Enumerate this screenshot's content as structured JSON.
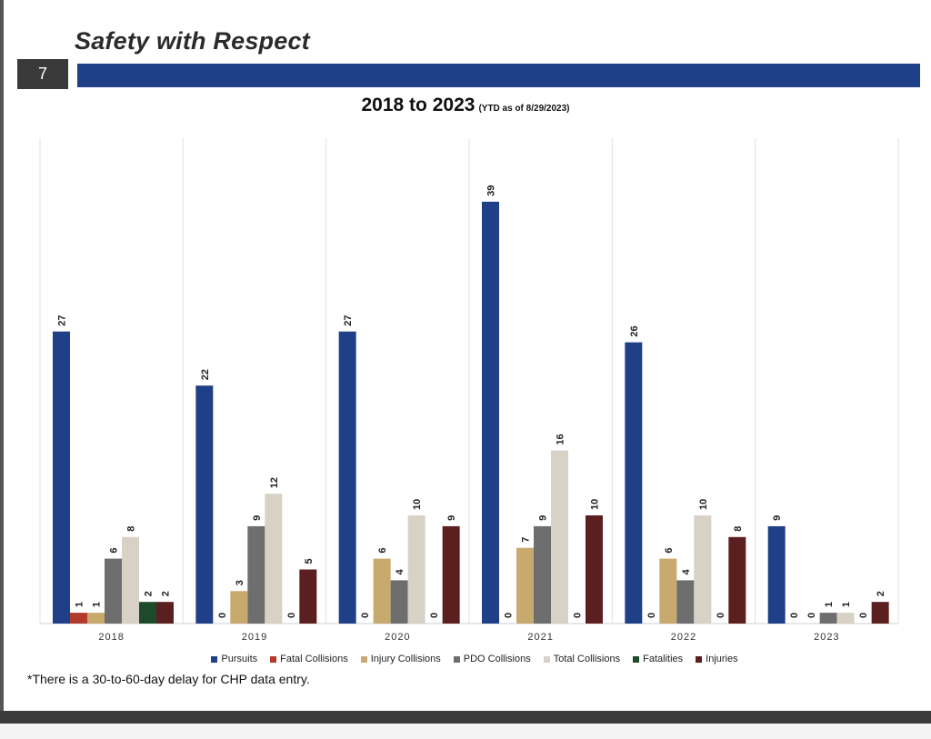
{
  "header": {
    "title": "Safety with Respect",
    "page_number": "7"
  },
  "footnote": "*There is a 30-to-60-day delay for CHP data entry.",
  "chart_data": {
    "type": "bar",
    "title": "2018 to 2023",
    "subtitle": "(YTD as of 8/29/2023)",
    "xlabel": "",
    "ylabel": "",
    "categories": [
      "2018",
      "2019",
      "2020",
      "2021",
      "2022",
      "2023"
    ],
    "ylim": [
      0,
      45
    ],
    "grid": "vertical separators between categories",
    "legend_position": "bottom",
    "series": [
      {
        "name": "Pursuits",
        "color": "#1f3f88",
        "values": [
          27,
          22,
          27,
          39,
          26,
          9
        ]
      },
      {
        "name": "Fatal Collisions",
        "color": "#b23a2b",
        "values": [
          1,
          0,
          0,
          0,
          0,
          0
        ]
      },
      {
        "name": "Injury Collisions",
        "color": "#c8a96e",
        "values": [
          1,
          3,
          6,
          7,
          6,
          0
        ]
      },
      {
        "name": "PDO Collisions",
        "color": "#6e6e6e",
        "values": [
          6,
          9,
          4,
          9,
          4,
          1
        ]
      },
      {
        "name": "Total Collisions",
        "color": "#d8d2c6",
        "values": [
          8,
          12,
          10,
          16,
          10,
          1
        ]
      },
      {
        "name": "Fatalities",
        "color": "#1d4a2a",
        "values": [
          2,
          0,
          0,
          0,
          0,
          0
        ]
      },
      {
        "name": "Injuries",
        "color": "#5c1f1f",
        "values": [
          2,
          5,
          9,
          10,
          8,
          2
        ]
      }
    ]
  }
}
